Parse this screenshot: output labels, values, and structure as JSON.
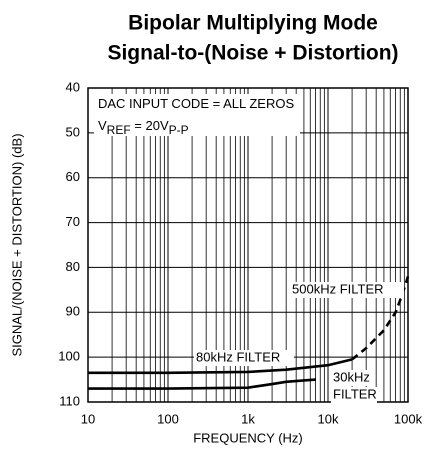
{
  "chart_data": {
    "type": "line",
    "title_lines": [
      "Bipolar Multiplying Mode",
      "Signal-to-(Noise + Distortion)"
    ],
    "x_label": "FREQUENCY (Hz)",
    "y_label": "SIGNAL/(NOISE + DISTORTION) (dB)",
    "annotations": [
      {
        "parts": [
          {
            "text": "DAC INPUT CODE = ALL ZEROS",
            "sub": false
          }
        ]
      },
      {
        "parts": [
          {
            "text": "V",
            "sub": false
          },
          {
            "text": "REF",
            "sub": true
          },
          {
            "text": " = 20V",
            "sub": false
          },
          {
            "text": "P-P",
            "sub": true
          }
        ]
      }
    ],
    "xlog": true,
    "xlim": [
      10,
      100000
    ],
    "xticks": [
      10,
      100,
      {
        "value": 1000,
        "label": "1k"
      },
      {
        "value": 10000,
        "label": "10k"
      },
      {
        "value": 100000,
        "label": "100k"
      }
    ],
    "ylim": [
      110,
      40
    ],
    "yticks": [
      40,
      50,
      60,
      70,
      80,
      90,
      100,
      110
    ],
    "grid": true,
    "minor_grid": true,
    "series": [
      {
        "label_lines": [
          "80kHz FILTER"
        ],
        "color": "#000000",
        "dashed": false,
        "x": [
          10,
          100,
          1000,
          3000,
          10000,
          20000
        ],
        "values": [
          103.5,
          103.5,
          103.3,
          102.8,
          101.8,
          100.5
        ]
      },
      {
        "label_lines": [
          "500kHz FILTER"
        ],
        "color": "#000000",
        "dashed": true,
        "x": [
          20000,
          30000,
          50000,
          70000,
          85000,
          100000
        ],
        "values": [
          100.5,
          98,
          94,
          90,
          86,
          82
        ]
      },
      {
        "label_lines": [
          "30kHz",
          "FILTER"
        ],
        "color": "#000000",
        "dashed": false,
        "x": [
          10,
          100,
          1000,
          2000,
          3000,
          5000,
          7000
        ],
        "values": [
          107,
          107,
          106.8,
          106,
          105.5,
          105.2,
          105
        ]
      }
    ]
  }
}
